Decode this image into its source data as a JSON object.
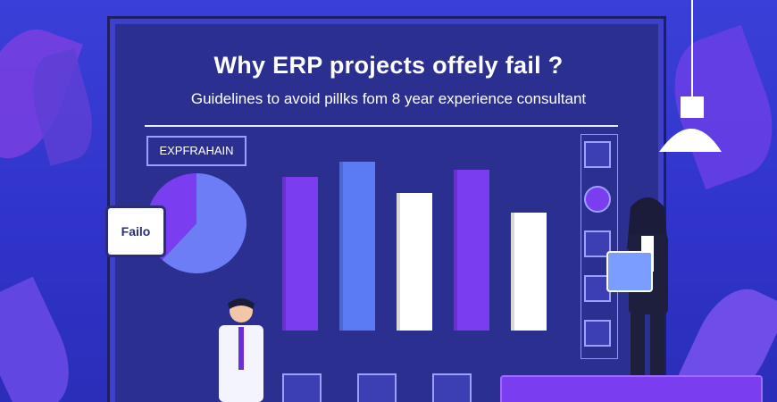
{
  "poster": {
    "title": "Why ERP projects offely fail ?",
    "subtitle": "Guidelines to avoid pillks fom 8 year experience consultant",
    "label_box": "EXPFRAHAIN",
    "speech_bubble": "Failo"
  },
  "bars": [
    {
      "value": 0.78,
      "color": "#7b3df0"
    },
    {
      "value": 0.86,
      "color": "#5b7bf5"
    },
    {
      "value": 0.7,
      "color": "#ffffff"
    },
    {
      "value": 0.82,
      "color": "#7b3df0"
    },
    {
      "value": 0.6,
      "color": "#ffffff"
    }
  ],
  "pie_slices": [
    {
      "fraction": 0.62,
      "color": "#6c7df5"
    },
    {
      "fraction": 0.38,
      "color": "#7b3df0"
    }
  ]
}
